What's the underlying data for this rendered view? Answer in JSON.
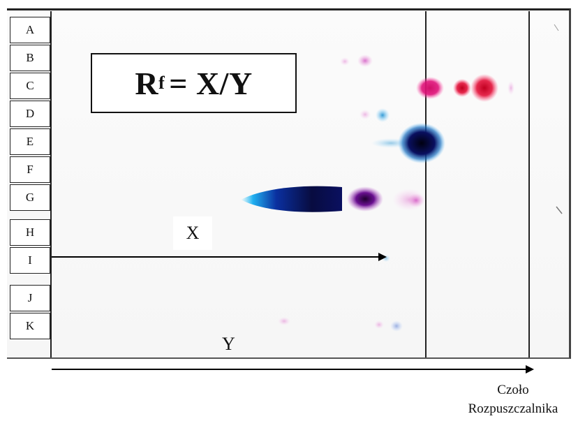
{
  "lanes": [
    "A",
    "B",
    "C",
    "D",
    "E",
    "F",
    "G",
    "H",
    "I",
    "J",
    "K"
  ],
  "formula": {
    "main": "R",
    "sub": "f",
    "rest": "= X/Y"
  },
  "x_label": "X",
  "y_label": "Y",
  "solvent_front": {
    "line1": "Czoło",
    "line2": "Rozpuszczalnika"
  },
  "colors": {
    "magenta": "#e0127a",
    "red": "#e3123a",
    "navy": "#0a1060",
    "cyan": "#1aa8e0",
    "purple": "#a020a0"
  }
}
